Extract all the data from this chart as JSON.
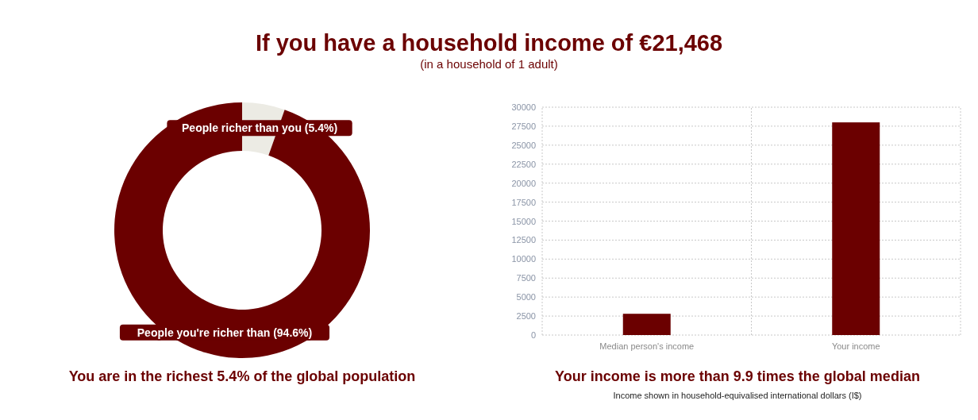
{
  "chart_data": [
    {
      "type": "donut",
      "title": "If you have a household income of €21,468",
      "subtitle": "(in a household of 1 adult)",
      "categories": [
        "People richer than you (5.4%)",
        "People you're richer than (94.6%)"
      ],
      "values": [
        5.4,
        94.6
      ],
      "colors": [
        "#ecebe4",
        "#6b0000"
      ],
      "annotations": [
        "You are in the richest 5.4% of the global population"
      ]
    },
    {
      "type": "bar",
      "categories": [
        "Median person's income",
        "Your income"
      ],
      "values": [
        2800,
        28000
      ],
      "color": "#6b0000",
      "ylim": [
        0,
        30000
      ],
      "yticks": [
        0,
        2500,
        5000,
        7500,
        10000,
        12500,
        15000,
        17500,
        20000,
        22500,
        25000,
        27500,
        30000
      ],
      "grid": true,
      "annotations": [
        "Your income is more than 9.9 times the global median",
        "Income shown in household-equivalised international dollars (I$)"
      ]
    }
  ]
}
